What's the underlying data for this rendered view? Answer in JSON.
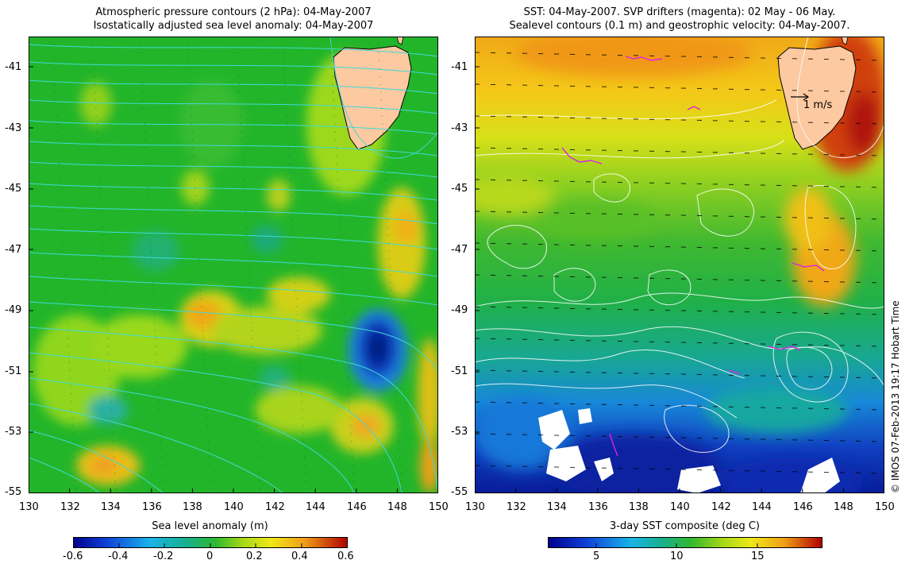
{
  "left_panel": {
    "title_line1": "Atmospheric pressure contours (2 hPa): 04-May-2007",
    "title_line2": "Isostatically adjusted sea level anomaly: 04-May-2007",
    "x_ticks": [
      "130",
      "132",
      "134",
      "136",
      "138",
      "140",
      "142",
      "144",
      "146",
      "148",
      "150"
    ],
    "y_ticks": [
      "-41",
      "-43",
      "-45",
      "-47",
      "-49",
      "-51",
      "-53",
      "-55"
    ],
    "colorbar": {
      "label": "Sea level anomaly (m)",
      "ticks": [
        "-0.6",
        "-0.4",
        "-0.2",
        "0",
        "0.2",
        "0.4",
        "0.6"
      ],
      "min": -0.6,
      "max": 0.6
    }
  },
  "right_panel": {
    "title_line1": "SST: 04-May-2007. SVP drifters (magenta): 02 May - 06 May.",
    "title_line2": "Sealevel contours (0.1 m) and geostrophic velocity: 04-May-2007.",
    "x_ticks": [
      "130",
      "132",
      "134",
      "136",
      "138",
      "140",
      "142",
      "144",
      "146",
      "148",
      "150"
    ],
    "y_ticks": [
      "-41",
      "-43",
      "-45",
      "-47",
      "-49",
      "-51",
      "-53",
      "-55"
    ],
    "velocity_scale_label": "1 m/s",
    "colorbar": {
      "label": "3-day SST composite (deg C)",
      "ticks": [
        "5",
        "10",
        "15"
      ],
      "min": 2,
      "max": 19
    }
  },
  "credit": "© IMOS 07-Feb-2013 19:17 Hobart Time",
  "colors": {
    "land": "#fcc9a0",
    "pressure_contour": "#40d8d8",
    "sealevel_contour": "#ffffff",
    "drifter": "#e020e0"
  }
}
